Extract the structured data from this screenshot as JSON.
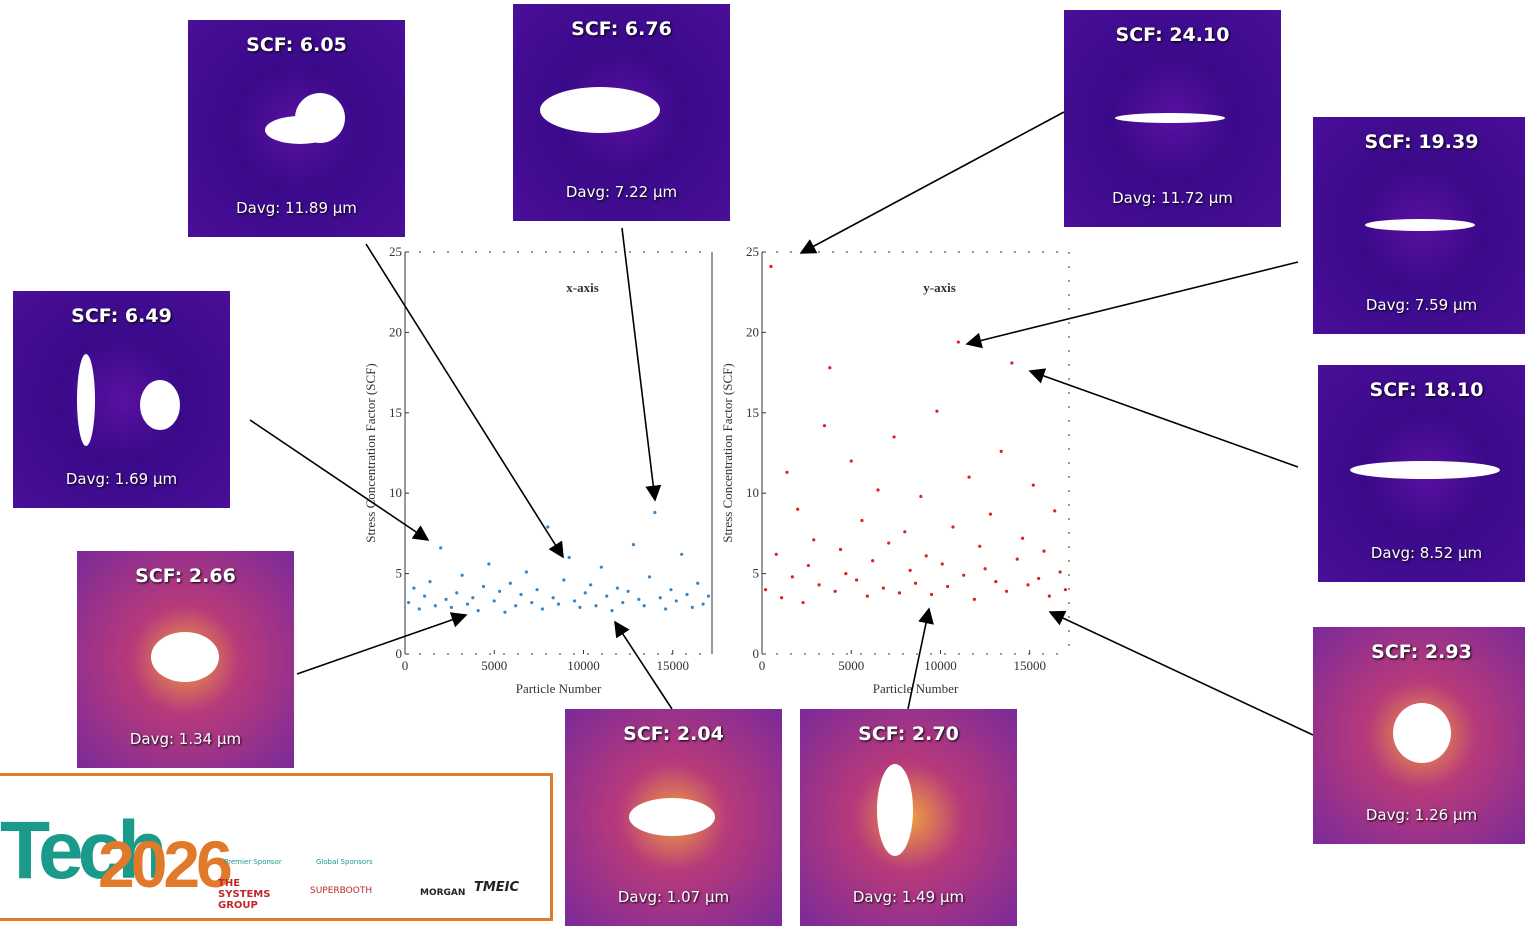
{
  "chart_data": [
    {
      "type": "scatter",
      "title": "x-axis",
      "x_label": "Particle Number",
      "y_label": "Stress Concentration Factor (SCF)",
      "xlim": [
        0,
        17200
      ],
      "ylim": [
        0,
        25
      ],
      "xticks": [
        0,
        5000,
        10000,
        15000
      ],
      "yticks": [
        0,
        5,
        10,
        15,
        20,
        25
      ],
      "series": [
        {
          "color": "#3a86c4",
          "x": [
            200,
            500,
            800,
            1100,
            1400,
            1700,
            2000,
            2300,
            2600,
            2900,
            3200,
            3500,
            3800,
            4100,
            4400,
            4700,
            5000,
            5300,
            5600,
            5900,
            6200,
            6500,
            6800,
            7100,
            7400,
            7700,
            8000,
            8300,
            8600,
            8900,
            9200,
            9500,
            9800,
            10100,
            10400,
            10700,
            11000,
            11300,
            11600,
            11900,
            12200,
            12500,
            12800,
            13100,
            13400,
            13700,
            14000,
            14300,
            14600,
            14900,
            15200,
            15500,
            15800,
            16100,
            16400,
            16700,
            17000
          ],
          "values": [
            3.2,
            4.1,
            2.8,
            3.6,
            4.5,
            3.0,
            6.6,
            3.4,
            2.9,
            3.8,
            4.9,
            3.1,
            3.5,
            2.7,
            4.2,
            5.6,
            3.3,
            3.9,
            2.6,
            4.4,
            3.0,
            3.7,
            5.1,
            3.2,
            4.0,
            2.8,
            7.9,
            3.5,
            3.1,
            4.6,
            6.0,
            3.3,
            2.9,
            3.8,
            4.3,
            3.0,
            5.4,
            3.6,
            2.7,
            4.1,
            3.2,
            3.9,
            6.8,
            3.4,
            3.0,
            4.8,
            8.8,
            3.5,
            2.8,
            4.0,
            3.3,
            6.2,
            3.7,
            2.9,
            4.4,
            3.1,
            3.6
          ]
        }
      ]
    },
    {
      "type": "scatter",
      "title": "y-axis",
      "x_label": "Particle Number",
      "y_label": "Stress Concentration Factor (SCF)",
      "xlim": [
        0,
        17200
      ],
      "ylim": [
        0,
        25
      ],
      "xticks": [
        0,
        5000,
        10000,
        15000
      ],
      "yticks": [
        0,
        5,
        10,
        15,
        20,
        25
      ],
      "series": [
        {
          "color": "#e02020",
          "x": [
            200,
            500,
            800,
            1100,
            1400,
            1700,
            2000,
            2300,
            2600,
            2900,
            3200,
            3500,
            3800,
            4100,
            4400,
            4700,
            5000,
            5300,
            5600,
            5900,
            6200,
            6500,
            6800,
            7100,
            7400,
            7700,
            8000,
            8300,
            8600,
            8900,
            9200,
            9500,
            9800,
            10100,
            10400,
            10700,
            11000,
            11300,
            11600,
            11900,
            12200,
            12500,
            12800,
            13100,
            13400,
            13700,
            14000,
            14300,
            14600,
            14900,
            15200,
            15500,
            15800,
            16100,
            16400,
            16700,
            17000
          ],
          "values": [
            4.0,
            24.1,
            6.2,
            3.5,
            11.3,
            4.8,
            9.0,
            3.2,
            5.5,
            7.1,
            4.3,
            14.2,
            17.8,
            3.9,
            6.5,
            5.0,
            12.0,
            4.6,
            8.3,
            3.6,
            5.8,
            10.2,
            4.1,
            6.9,
            13.5,
            3.8,
            7.6,
            5.2,
            4.4,
            9.8,
            6.1,
            3.7,
            15.1,
            5.6,
            4.2,
            7.9,
            19.4,
            4.9,
            11.0,
            3.4,
            6.7,
            5.3,
            8.7,
            4.5,
            12.6,
            3.9,
            18.1,
            5.9,
            7.2,
            4.3,
            10.5,
            4.7,
            6.4,
            3.6,
            8.9,
            5.1,
            4.0
          ]
        }
      ]
    }
  ],
  "panels": [
    {
      "scf": "SCF: 6.05",
      "davg": "Davg: 11.89 µm"
    },
    {
      "scf": "SCF: 6.76",
      "davg": "Davg: 7.22 µm"
    },
    {
      "scf": "SCF: 24.10",
      "davg": "Davg: 11.72 µm"
    },
    {
      "scf": "SCF: 19.39",
      "davg": "Davg: 7.59 µm"
    },
    {
      "scf": "SCF: 6.49",
      "davg": "Davg: 1.69 µm"
    },
    {
      "scf": "SCF: 18.10",
      "davg": "Davg: 8.52 µm"
    },
    {
      "scf": "SCF: 2.66",
      "davg": "Davg: 1.34 µm"
    },
    {
      "scf": "SCF: 2.04",
      "davg": "Davg: 1.07 µm"
    },
    {
      "scf": "SCF: 2.70",
      "davg": "Davg: 1.49 µm"
    },
    {
      "scf": "SCF: 2.93",
      "davg": "Davg: 1.26 µm"
    }
  ],
  "logo": {
    "brand": "Tech",
    "year": "2026",
    "premier": "Premier Sponsor",
    "global": "Global Sponsors",
    "sponsors": [
      "THE SYSTEMS GROUP",
      "SUPERBOOTH",
      "MORGAN",
      "TMEIC"
    ]
  }
}
